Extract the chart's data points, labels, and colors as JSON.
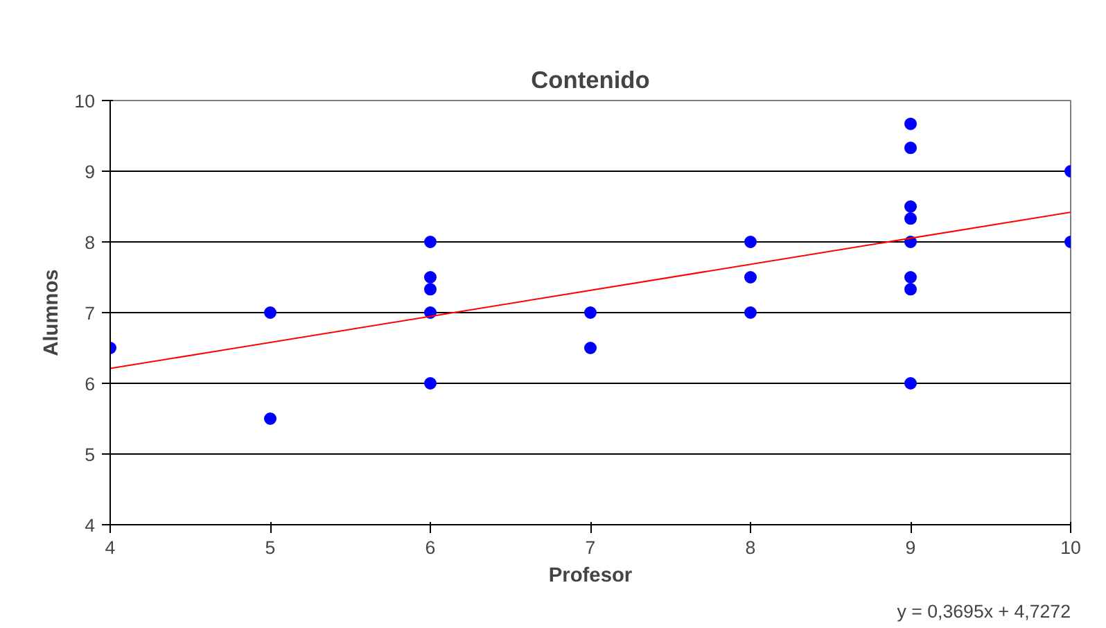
{
  "chart_data": {
    "type": "scatter",
    "title": "Contenido",
    "xlabel": "Profesor",
    "ylabel": "Alumnos",
    "xlim": [
      4,
      10
    ],
    "ylim": [
      4,
      10
    ],
    "xticks": [
      4,
      5,
      6,
      7,
      8,
      9,
      10
    ],
    "yticks": [
      4,
      5,
      6,
      7,
      8,
      9,
      10
    ],
    "grid": "y",
    "series": [
      {
        "marker": "circle",
        "color": "#0000ff",
        "x": [
          4,
          5,
          5,
          6,
          6,
          6,
          6,
          6,
          7,
          7,
          8,
          8,
          8,
          9,
          9,
          9,
          9,
          9,
          9,
          9,
          9,
          10,
          10
        ],
        "values": [
          6.5,
          7,
          5.5,
          8,
          7.5,
          7.33,
          7,
          6,
          7,
          6.5,
          8,
          7.5,
          7,
          9.67,
          9.33,
          8.5,
          8.33,
          8,
          7.5,
          7.33,
          6,
          9,
          8
        ]
      },
      {
        "type": "line",
        "color": "#ff0000",
        "x": [
          4,
          10
        ],
        "values": [
          6.21,
          8.42
        ]
      }
    ],
    "annotations": [
      "y = 0,3695x + 4,7272"
    ]
  }
}
